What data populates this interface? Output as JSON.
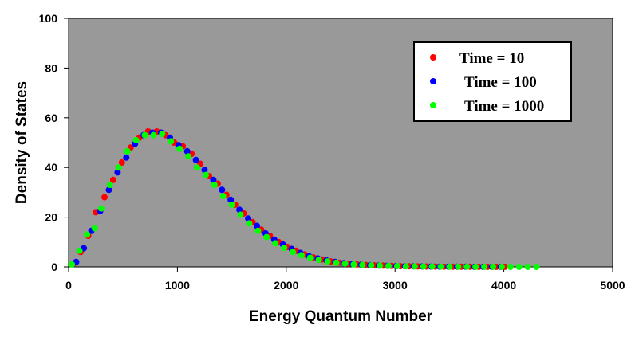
{
  "chart_data": {
    "type": "scatter",
    "title": "",
    "xlabel": "Energy Quantum Number",
    "ylabel": "Density of States",
    "xlim": [
      0,
      5000
    ],
    "ylim": [
      0,
      100
    ],
    "xticks": [
      0,
      1000,
      2000,
      3000,
      4000,
      5000
    ],
    "yticks": [
      0,
      20,
      40,
      60,
      80,
      100
    ],
    "grid": false,
    "background": "#999999",
    "legend_position": "top-right",
    "series": [
      {
        "name": "Time = 10",
        "color": "#ff0000",
        "x": [
          50,
          110,
          180,
          250,
          330,
          410,
          490,
          570,
          650,
          730,
          810,
          890,
          970,
          1050,
          1130,
          1210,
          1290,
          1370,
          1450,
          1530,
          1610,
          1690,
          1770,
          1850,
          1930,
          2010,
          2090,
          2170,
          2250,
          2330,
          2410,
          2490,
          2570,
          2650,
          2730,
          2810,
          2890,
          2970,
          3050,
          3130,
          3210,
          3290,
          3370,
          3450,
          3530,
          3610,
          3690,
          3770,
          3850,
          3930,
          4010
        ],
        "y": [
          1.5,
          6,
          12.5,
          22,
          28,
          35,
          42,
          48,
          52,
          54.5,
          54.5,
          53,
          50,
          48.5,
          45.5,
          41.5,
          36.5,
          33.5,
          29,
          25,
          21.5,
          18,
          15,
          12.5,
          10,
          8,
          6.5,
          5,
          3.8,
          3,
          2.2,
          1.7,
          1.3,
          1,
          0.8,
          0.6,
          0.5,
          0.4,
          0.3,
          0.25,
          0.2,
          0.15,
          0.12,
          0.1,
          0.08,
          0.06,
          0.05,
          0.04,
          0.03,
          0.02,
          0.02
        ]
      },
      {
        "name": "Time = 100",
        "color": "#0000ff",
        "x": [
          70,
          140,
          210,
          290,
          370,
          450,
          530,
          610,
          690,
          770,
          850,
          930,
          1010,
          1090,
          1170,
          1250,
          1330,
          1410,
          1490,
          1570,
          1650,
          1730,
          1810,
          1890,
          1970,
          2050,
          2130,
          2210,
          2290,
          2370,
          2450,
          2530,
          2610,
          2690,
          2770,
          2850,
          2930,
          3010,
          3090,
          3170,
          3250,
          3330,
          3410,
          3490,
          3570,
          3650,
          3730,
          3810,
          3890,
          3970
        ],
        "y": [
          2,
          7.5,
          14.5,
          22.5,
          31,
          38,
          44,
          49.5,
          53,
          54,
          54,
          52,
          49,
          46.5,
          43,
          39,
          35,
          31,
          27,
          23,
          19.5,
          16.5,
          13.5,
          11,
          9,
          7.2,
          5.6,
          4.3,
          3.4,
          2.6,
          2,
          1.5,
          1.2,
          0.9,
          0.7,
          0.55,
          0.45,
          0.35,
          0.28,
          0.22,
          0.18,
          0.14,
          0.11,
          0.09,
          0.07,
          0.05,
          0.04,
          0.03,
          0.02,
          0.02
        ]
      },
      {
        "name": "Time = 1000",
        "color": "#00ff00",
        "x": [
          30,
          100,
          170,
          240,
          300,
          380,
          460,
          540,
          620,
          700,
          780,
          860,
          940,
          1020,
          1100,
          1180,
          1260,
          1340,
          1420,
          1500,
          1580,
          1660,
          1740,
          1820,
          1900,
          1980,
          2060,
          2140,
          2220,
          2300,
          2380,
          2460,
          2540,
          2620,
          2700,
          2780,
          2860,
          2940,
          3020,
          3100,
          3180,
          3260,
          3340,
          3420,
          3500,
          3580,
          3660,
          3740,
          3820,
          3900,
          3980,
          4060,
          4140,
          4220,
          4300
        ],
        "y": [
          1,
          6.5,
          13,
          15.5,
          23.5,
          33,
          40,
          46.5,
          51,
          53,
          53,
          53.5,
          50.5,
          47.5,
          44.5,
          40,
          37,
          33,
          28.5,
          25,
          21,
          17.5,
          14.5,
          12,
          9.5,
          7.7,
          6,
          4.7,
          3.7,
          2.9,
          2.2,
          1.7,
          1.3,
          1,
          0.8,
          0.6,
          0.5,
          0.4,
          0.32,
          0.25,
          0.2,
          0.16,
          0.13,
          0.1,
          0.08,
          0.06,
          0.05,
          0.04,
          0.03,
          0.02,
          0.02,
          0.01,
          0.01,
          0.01,
          0.01
        ]
      }
    ]
  }
}
